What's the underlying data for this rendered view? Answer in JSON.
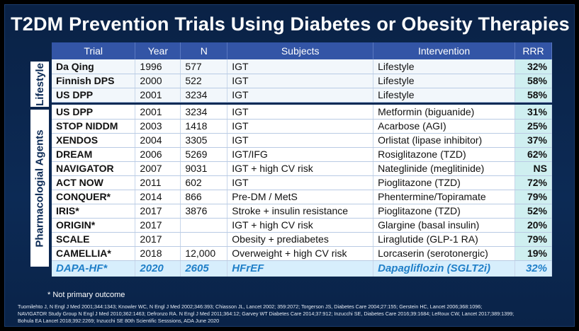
{
  "title": "T2DM Prevention Trials Using Diabetes or Obesity Therapies",
  "side_labels": {
    "lifestyle": "Lifestyle",
    "pharma": "Pharmacologial Agents"
  },
  "headers": {
    "trial": "Trial",
    "year": "Year",
    "n": "N",
    "subjects": "Subjects",
    "intervention": "Intervention",
    "rrr": "RRR"
  },
  "lifestyle_rows": [
    {
      "trial": "Da Qing",
      "year": "1996",
      "n": "577",
      "subjects": "IGT",
      "intervention": "Lifestyle",
      "rrr": "32%"
    },
    {
      "trial": "Finnish DPS",
      "year": "2000",
      "n": "522",
      "subjects": "IGT",
      "intervention": "Lifestyle",
      "rrr": "58%"
    },
    {
      "trial": "US DPP",
      "year": "2001",
      "n": "3234",
      "subjects": "IGT",
      "intervention": "Lifestyle",
      "rrr": "58%"
    }
  ],
  "pharma_rows": [
    {
      "trial": "US DPP",
      "year": "2001",
      "n": "3234",
      "subjects": "IGT",
      "intervention": "Metformin (biguanide)",
      "rrr": "31%"
    },
    {
      "trial": "STOP NIDDM",
      "year": "2003",
      "n": "1418",
      "subjects": "IGT",
      "intervention": "Acarbose (AGI)",
      "rrr": "25%"
    },
    {
      "trial": "XENDOS",
      "year": "2004",
      "n": "3305",
      "subjects": "IGT",
      "intervention": "Orlistat (lipase inhibitor)",
      "rrr": "37%"
    },
    {
      "trial": "DREAM",
      "year": "2006",
      "n": "5269",
      "subjects": "IGT/IFG",
      "intervention": "Rosiglitazone (TZD)",
      "rrr": "62%"
    },
    {
      "trial": "NAVIGATOR",
      "year": "2007",
      "n": "9031",
      "subjects": "IGT + high CV risk",
      "intervention": "Nateglinide (meglitinide)",
      "rrr": "NS"
    },
    {
      "trial": "ACT NOW",
      "year": "2011",
      "n": "602",
      "subjects": "IGT",
      "intervention": "Pioglitazone (TZD)",
      "rrr": "72%"
    },
    {
      "trial": "CONQUER*",
      "year": "2014",
      "n": "866",
      "subjects": "Pre-DM / MetS",
      "intervention": "Phentermine/Topiramate",
      "rrr": "79%"
    },
    {
      "trial": "IRIS*",
      "year": "2017",
      "n": "3876",
      "subjects": "Stroke + insulin resistance",
      "intervention": "Pioglitazone (TZD)",
      "rrr": "52%"
    },
    {
      "trial": "ORIGIN*",
      "year": "2017",
      "n": "",
      "subjects": "IGT + high CV risk",
      "intervention": "Glargine (basal insulin)",
      "rrr": "20%"
    },
    {
      "trial": "SCALE",
      "year": "2017",
      "n": "",
      "subjects": "Obesity + prediabetes",
      "intervention": "Liraglutide (GLP-1 RA)",
      "rrr": "79%"
    },
    {
      "trial": "CAMELLIA*",
      "year": "2018",
      "n": "12,000",
      "subjects": "Overweight + high CV risk",
      "intervention": "Lorcaserin (serotonergic)",
      "rrr": "19%"
    }
  ],
  "highlight_row": {
    "trial": "DAPA-HF*",
    "year": "2020",
    "n": "2605",
    "subjects": "HFrEF",
    "intervention": "Dapagliflozin (SGLT2i)",
    "rrr": "32%"
  },
  "footnote": "* Not primary outcome",
  "references": [
    "Tuomilehto J, N Engl J Med 2001;344:1343; Knowler WC, N Engl J Med 2002;346:393; Chiasson JL, Lancet 2002; 359:2072; Torgerson JS, Diabetes Care 2004;27:155; Gerstein HC, Lancet 2006;368:1096;",
    "NAVIGATOR Study Group N Engl J Med 2010;362:1463; Defronzo RA. N Engl J Med 2011;364:12; Garvey WT Diabetes Care 2014;37:912; Inzucchi SE, Diabetes Care 2016;39:1684; LeRoux CW, Lancet 2017;389:1399;",
    "Bohula EA Lancet 2018;392:2269; Inzucchi SE 80th Scientific Sesssions, ADA June 2020"
  ],
  "colors": {
    "background": "#0b2a55",
    "header": "#3355a6",
    "rrr_cell": "#cfeff0",
    "highlight_text": "#1f7fc8"
  }
}
